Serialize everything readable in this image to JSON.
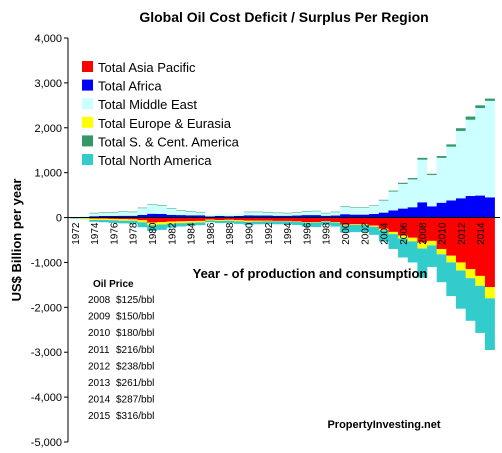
{
  "chart_data": {
    "type": "bar",
    "stacked": true,
    "title": "Global Oil Cost Deficit / Surplus Per Region",
    "xlabel": "Year - of production and consumption",
    "ylabel": "US$ Billion per year",
    "ylim": [
      -5000,
      4000
    ],
    "yticks": [
      4000,
      3000,
      2000,
      1000,
      0,
      -1000,
      -2000,
      -3000,
      -4000,
      -5000
    ],
    "ytick_labels": [
      "4,000",
      "3,000",
      "2,000",
      "1,000",
      "0",
      "-1,000",
      "-2,000",
      "-3,000",
      "-4,000",
      "-5,000"
    ],
    "x": [
      1972,
      1973,
      1974,
      1975,
      1976,
      1977,
      1978,
      1979,
      1980,
      1981,
      1982,
      1983,
      1984,
      1985,
      1986,
      1987,
      1988,
      1989,
      1990,
      1991,
      1992,
      1993,
      1994,
      1995,
      1996,
      1997,
      1998,
      1999,
      2000,
      2001,
      2002,
      2003,
      2004,
      2005,
      2006,
      2007,
      2008,
      2009,
      2010,
      2011,
      2012,
      2013,
      2014,
      2015
    ],
    "xtick_labels": [
      "1972",
      "1974",
      "1976",
      "1978",
      "1980",
      "1982",
      "1984",
      "1986",
      "1988",
      "1990",
      "1992",
      "1994",
      "1996",
      "1998",
      "2000",
      "2002",
      "2004",
      "2006",
      "2008",
      "2010",
      "2012",
      "2014"
    ],
    "legend_position": "top-left",
    "grid": false,
    "series": [
      {
        "name": "Total Asia Pacific",
        "color": "#ff0000",
        "values": [
          -5,
          -10,
          -25,
          -25,
          -30,
          -35,
          -40,
          -60,
          -110,
          -100,
          -90,
          -85,
          -80,
          -75,
          -45,
          -55,
          -50,
          -60,
          -70,
          -70,
          -70,
          -75,
          -75,
          -85,
          -100,
          -100,
          -80,
          -100,
          -160,
          -150,
          -150,
          -180,
          -250,
          -320,
          -400,
          -450,
          -560,
          -520,
          -700,
          -850,
          -1000,
          -1150,
          -1300,
          -1550
        ]
      },
      {
        "name": "Total Africa",
        "color": "#0000ff",
        "values": [
          5,
          10,
          30,
          35,
          35,
          40,
          40,
          60,
          85,
          80,
          60,
          55,
          50,
          50,
          25,
          35,
          30,
          35,
          50,
          45,
          45,
          40,
          40,
          45,
          55,
          55,
          40,
          45,
          75,
          65,
          65,
          80,
          110,
          160,
          200,
          230,
          340,
          250,
          330,
          380,
          430,
          480,
          490,
          450
        ]
      },
      {
        "name": "Total Middle East",
        "color": "#ccffff",
        "values": [
          10,
          20,
          70,
          75,
          80,
          90,
          85,
          150,
          200,
          190,
          140,
          100,
          90,
          70,
          40,
          50,
          45,
          55,
          75,
          80,
          70,
          65,
          60,
          65,
          80,
          85,
          60,
          80,
          170,
          150,
          150,
          180,
          270,
          420,
          550,
          620,
          950,
          700,
          1000,
          1200,
          1500,
          1700,
          1950,
          2150
        ]
      },
      {
        "name": "Total Europe & Eurasia",
        "color": "#ffff00",
        "values": [
          -10,
          -15,
          -30,
          -30,
          -30,
          -35,
          -30,
          -45,
          -60,
          -55,
          -45,
          -40,
          -35,
          -35,
          -20,
          -20,
          -20,
          -25,
          -25,
          -20,
          -15,
          -10,
          -10,
          -10,
          -10,
          -10,
          -5,
          -10,
          -15,
          -15,
          -20,
          -25,
          -35,
          -50,
          -70,
          -80,
          -130,
          -100,
          -120,
          -150,
          -180,
          -200,
          -220,
          -250
        ]
      },
      {
        "name": "Total S. & Cent. America",
        "color": "#339966",
        "values": [
          0,
          0,
          5,
          5,
          5,
          5,
          5,
          10,
          10,
          10,
          5,
          5,
          5,
          5,
          0,
          0,
          0,
          0,
          5,
          5,
          5,
          5,
          5,
          5,
          10,
          10,
          5,
          5,
          10,
          10,
          10,
          10,
          15,
          20,
          25,
          30,
          40,
          25,
          40,
          50,
          60,
          70,
          60,
          50
        ]
      },
      {
        "name": "Total North America",
        "color": "#33cccc",
        "values": [
          -5,
          -10,
          -40,
          -50,
          -60,
          -60,
          -65,
          -110,
          -130,
          -120,
          -90,
          -75,
          -70,
          -60,
          -40,
          -50,
          -50,
          -55,
          -70,
          -60,
          -60,
          -65,
          -65,
          -70,
          -90,
          -100,
          -75,
          -90,
          -160,
          -160,
          -150,
          -180,
          -250,
          -330,
          -420,
          -470,
          -650,
          -480,
          -620,
          -750,
          -850,
          -950,
          -1050,
          -1150
        ]
      }
    ],
    "annotations": {
      "oil_price_title": "Oil Price",
      "oil_price": [
        {
          "year": "2008",
          "price": "$125/bbl"
        },
        {
          "year": "2009",
          "price": "$150/bbl"
        },
        {
          "year": "2010",
          "price": "$180/bbl"
        },
        {
          "year": "2011",
          "price": "$216/bbl"
        },
        {
          "year": "2012",
          "price": "$238/bbl"
        },
        {
          "year": "2013",
          "price": "$261/bbl"
        },
        {
          "year": "2014",
          "price": "$287/bbl"
        },
        {
          "year": "2015",
          "price": "$316/bbl"
        }
      ],
      "source": "PropertyInvesting.net"
    }
  }
}
